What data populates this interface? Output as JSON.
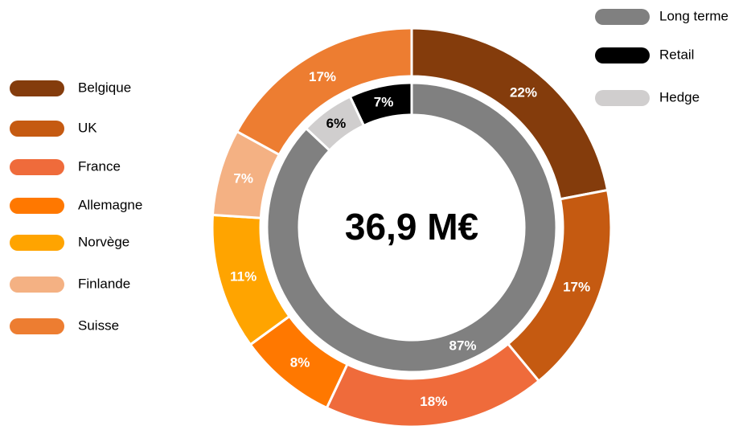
{
  "chart_data": {
    "type": "donut",
    "center_label": "36,9 M€",
    "rings": [
      {
        "categories": [
          "Belgique",
          "UK",
          "France",
          "Allemagne",
          "Norvège",
          "Finlande",
          "Suisse"
        ],
        "colors": [
          "#843c0c",
          "#c55a11",
          "#ef6b3b",
          "#ff7800",
          "#ffa400",
          "#f4b183",
          "#ed7d31"
        ],
        "values": [
          22,
          17,
          18,
          8,
          11,
          7,
          17
        ],
        "value_labels": [
          "22%",
          "17%",
          "18%",
          "8%",
          "11%",
          "7%",
          "17%"
        ],
        "direction": "clockwise",
        "legend": "left"
      },
      {
        "categories": [
          "Long terme",
          "Retail",
          "Hedge"
        ],
        "colors": [
          "#808080",
          "#000000",
          "#d0cece"
        ],
        "values": [
          87,
          7,
          6
        ],
        "value_labels": [
          "87%",
          "7%",
          "6%"
        ],
        "direction": "counterclockwise",
        "legend": "right"
      }
    ]
  }
}
